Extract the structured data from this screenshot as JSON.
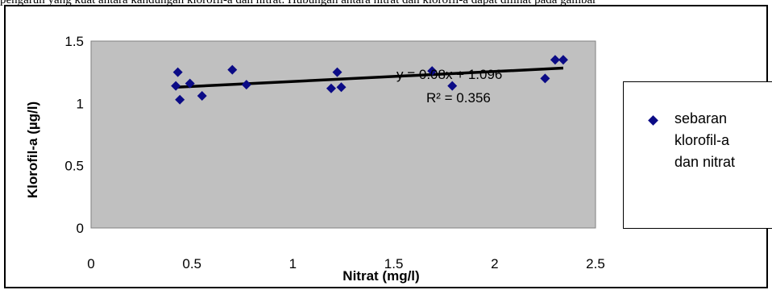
{
  "caption_fragment": "pengaruh yang kuat antara kandungan klorofil-a dan nitrat. Hubungan antara nitrat dan klorofil-a dapat dilihat pada gambar",
  "chart_data": {
    "type": "scatter",
    "xlabel": "Nitrat (mg/l)",
    "ylabel": "Klorofil-a (µg/l)",
    "xlim": [
      0,
      2.5
    ],
    "ylim": [
      0,
      1.5
    ],
    "x_ticks": [
      "0",
      "0.5",
      "1",
      "1.5",
      "2",
      "2.5"
    ],
    "y_ticks": [
      "0",
      "0.5",
      "1",
      "1.5"
    ],
    "x_tick_values": [
      0,
      0.5,
      1,
      1.5,
      2,
      2.5
    ],
    "y_tick_values": [
      0,
      0.5,
      1,
      1.5
    ],
    "grid": false,
    "plot_background": "#c0c0c0",
    "series": [
      {
        "name": "sebaran klorofil-a dan nitrat",
        "color": "#0b0b86",
        "marker": "diamond",
        "points": [
          {
            "x": 0.42,
            "y": 1.14
          },
          {
            "x": 0.43,
            "y": 1.25
          },
          {
            "x": 0.44,
            "y": 1.03
          },
          {
            "x": 0.49,
            "y": 1.16
          },
          {
            "x": 0.55,
            "y": 1.06
          },
          {
            "x": 0.7,
            "y": 1.27
          },
          {
            "x": 0.77,
            "y": 1.15
          },
          {
            "x": 1.19,
            "y": 1.12
          },
          {
            "x": 1.22,
            "y": 1.25
          },
          {
            "x": 1.24,
            "y": 1.13
          },
          {
            "x": 1.69,
            "y": 1.26
          },
          {
            "x": 1.79,
            "y": 1.14
          },
          {
            "x": 2.25,
            "y": 1.2
          },
          {
            "x": 2.3,
            "y": 1.35
          },
          {
            "x": 2.34,
            "y": 1.35
          }
        ]
      }
    ],
    "trendline": {
      "equation": "y = 0.08x + 1.096",
      "r_squared": "R² = 0.356",
      "slope": 0.08,
      "intercept": 1.096,
      "x_from": 0.42,
      "x_to": 2.34,
      "color": "#000000"
    },
    "legend": {
      "position": "right",
      "lines": [
        "sebaran",
        "klorofil-a",
        "dan nitrat"
      ]
    }
  }
}
